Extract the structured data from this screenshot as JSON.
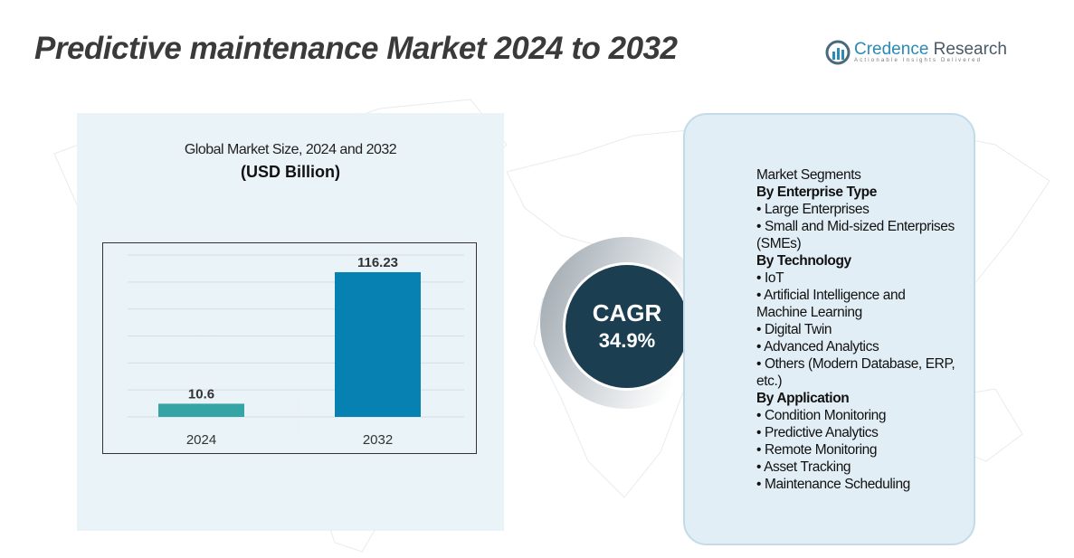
{
  "title": "Predictive maintenance Market 2024 to 2032",
  "logo": {
    "name_a": "Credence",
    "name_b": " Research",
    "tagline": "Actionable Insights Delivered"
  },
  "chart_data": {
    "type": "bar",
    "title": "Global Market Size, 2024 and 2032",
    "subtitle": "(USD Billion)",
    "categories": [
      "2024",
      "2032"
    ],
    "values": [
      10.6,
      116.23
    ],
    "value_labels": [
      "10.6",
      "116.23"
    ],
    "colors": [
      "#35a4a4",
      "#0681b1"
    ],
    "xlabel": "",
    "ylabel": "",
    "ylim": [
      0,
      130
    ],
    "grid": true
  },
  "cagr": {
    "label": "CAGR",
    "value": "34.9%"
  },
  "segments": {
    "title": "Market Segments",
    "groups": [
      {
        "heading": "By Enterprise Type",
        "items": [
          "Large Enterprises",
          "Small and Mid-sized Enterprises (SMEs)"
        ]
      },
      {
        "heading": "By Technology",
        "items": [
          "IoT",
          "Artificial Intelligence and Machine Learning",
          "Digital Twin",
          "Advanced Analytics",
          "Others (Modern Database, ERP, etc.)"
        ]
      },
      {
        "heading": "By Application",
        "items": [
          "Condition Monitoring",
          "Predictive Analytics",
          "Remote Monitoring",
          "Asset Tracking",
          "Maintenance Scheduling"
        ]
      }
    ]
  }
}
